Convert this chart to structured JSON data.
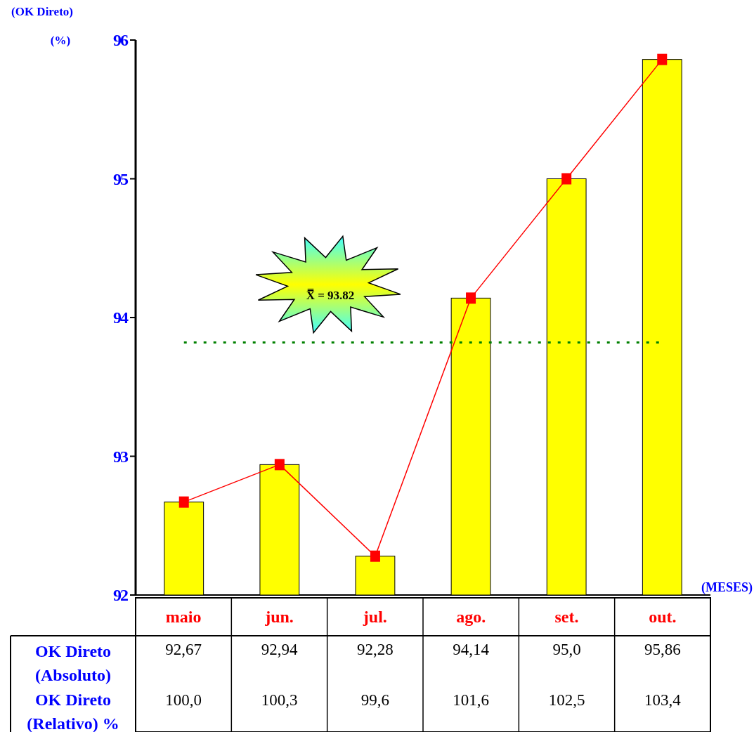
{
  "chart_data": {
    "type": "bar",
    "ylabel": "(OK Direto) (%)",
    "xlabel": "(MESES)",
    "categories": [
      "maio",
      "jun.",
      "jul.",
      "ago.",
      "set.",
      "out."
    ],
    "series": [
      {
        "color": "#ffff00",
        "values": [
          92.67,
          92.94,
          92.28,
          94.14,
          95.0,
          95.86
        ],
        "value_labels": [
          "92,67",
          "92,94",
          "92,28",
          "94,14",
          "95,0",
          "95,86"
        ]
      },
      {
        "type": "line",
        "color": "#ff0000",
        "values": [
          92.67,
          92.94,
          92.28,
          94.14,
          95.0,
          95.86
        ]
      }
    ],
    "marker": "square",
    "line_style": "solid",
    "ylim": [
      92,
      96
    ],
    "yticks": [
      92,
      93,
      94,
      95,
      96
    ],
    "ref_lines": [
      {
        "axis": "y",
        "value": 93.82,
        "color": "#008000",
        "line_style": "dotted"
      }
    ],
    "annotations": [
      "X̿ = 93.82",
      "OK Direto (Absoluto)",
      "OK Direto (Relativo) %",
      "100,0",
      "100,3",
      "99,6",
      "101,6",
      "102,5",
      "103,4"
    ]
  }
}
